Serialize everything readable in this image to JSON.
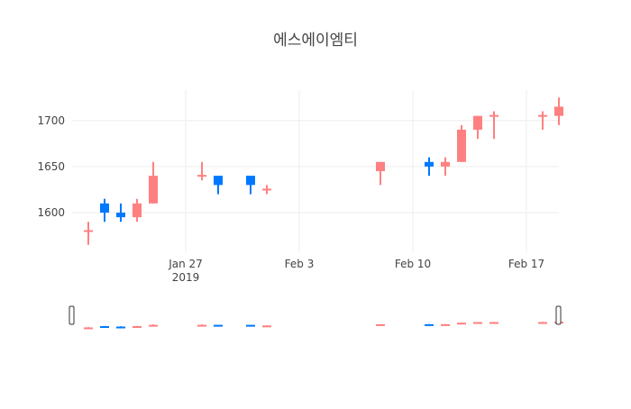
{
  "chart_data": {
    "type": "candlestick",
    "title": "에스에이엠티",
    "xlabel": "",
    "ylabel": "",
    "x_ticks": [
      {
        "date": "2019-01-27",
        "label": "Jan 27",
        "sublabel": "2019"
      },
      {
        "date": "2019-02-03",
        "label": "Feb 3",
        "sublabel": ""
      },
      {
        "date": "2019-02-10",
        "label": "Feb 10",
        "sublabel": ""
      },
      {
        "date": "2019-02-17",
        "label": "Feb 17",
        "sublabel": ""
      }
    ],
    "y_ticks": [
      {
        "value": 1600,
        "label": "1600"
      },
      {
        "value": 1650,
        "label": "1650"
      },
      {
        "value": 1700,
        "label": "1700"
      }
    ],
    "xlim": [
      "2019-01-20",
      "2019-02-19"
    ],
    "ylim": [
      1557,
      1733
    ],
    "grid": true,
    "colors": {
      "increasing": "#FF8080",
      "decreasing": "#0078FF",
      "grid": "#EEEEEE",
      "text": "#444444"
    },
    "range_slider": true,
    "candles": [
      {
        "date": "2019-01-21",
        "open": 1580,
        "high": 1590,
        "low": 1565,
        "close": 1580
      },
      {
        "date": "2019-01-22",
        "open": 1610,
        "high": 1615,
        "low": 1590,
        "close": 1600
      },
      {
        "date": "2019-01-23",
        "open": 1600,
        "high": 1610,
        "low": 1590,
        "close": 1595
      },
      {
        "date": "2019-01-24",
        "open": 1595,
        "high": 1615,
        "low": 1590,
        "close": 1610
      },
      {
        "date": "2019-01-25",
        "open": 1610,
        "high": 1655,
        "low": 1610,
        "close": 1640
      },
      {
        "date": "2019-01-28",
        "open": 1640,
        "high": 1655,
        "low": 1635,
        "close": 1640
      },
      {
        "date": "2019-01-29",
        "open": 1640,
        "high": 1640,
        "low": 1620,
        "close": 1630
      },
      {
        "date": "2019-01-31",
        "open": 1640,
        "high": 1640,
        "low": 1620,
        "close": 1630
      },
      {
        "date": "2019-02-01",
        "open": 1625,
        "high": 1630,
        "low": 1620,
        "close": 1625
      },
      {
        "date": "2019-02-08",
        "open": 1645,
        "high": 1655,
        "low": 1630,
        "close": 1655
      },
      {
        "date": "2019-02-11",
        "open": 1655,
        "high": 1660,
        "low": 1640,
        "close": 1650
      },
      {
        "date": "2019-02-12",
        "open": 1650,
        "high": 1660,
        "low": 1640,
        "close": 1655
      },
      {
        "date": "2019-02-13",
        "open": 1655,
        "high": 1695,
        "low": 1655,
        "close": 1690
      },
      {
        "date": "2019-02-14",
        "open": 1690,
        "high": 1705,
        "low": 1680,
        "close": 1705
      },
      {
        "date": "2019-02-15",
        "open": 1705,
        "high": 1710,
        "low": 1680,
        "close": 1705
      },
      {
        "date": "2019-02-18",
        "open": 1705,
        "high": 1710,
        "low": 1690,
        "close": 1705
      },
      {
        "date": "2019-02-19",
        "open": 1705,
        "high": 1725,
        "low": 1695,
        "close": 1715
      }
    ]
  }
}
